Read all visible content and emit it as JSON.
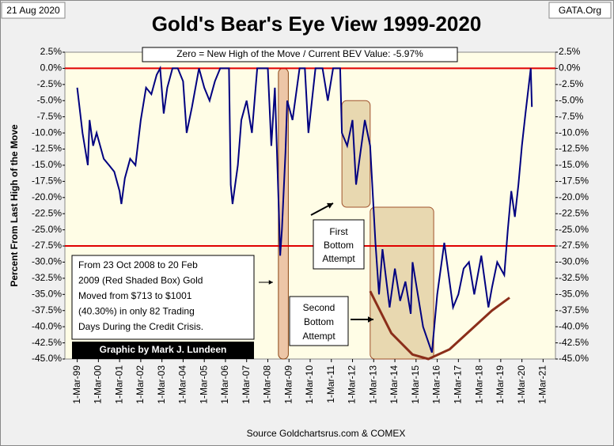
{
  "chart_data": {
    "type": "line",
    "title": "Gold's Bear's Eye View 1999-2020",
    "date_label": "21 Aug 2020",
    "site_label": "GATA.Org",
    "header_note": "Zero = New High of the Move / Current BEV Value:  -5.97%",
    "y_label": "Percent  From Last High of the Move",
    "source": "Source Goldchartsrus.com & COMEX",
    "credit": "Graphic by Mark J. Lundeen",
    "crisis_note": [
      "From 23 Oct 2008 to 20 Feb",
      "2009 (Red Shaded Box)  Gold",
      "Moved from $713 to $1001",
      "(40.30%) in only 82 Trading",
      "Days During the Credit Crisis."
    ],
    "first_bottom": [
      "First",
      "Bottom",
      "Attempt"
    ],
    "second_bottom": [
      "Second",
      "Bottom",
      "Attempt"
    ],
    "series": [
      {
        "name": "BEV",
        "color": "#000080",
        "x": [
          "1999-03-01",
          "1999-06-01",
          "1999-09-01",
          "1999-10-01",
          "1999-12-01",
          "2000-02-01",
          "2000-06-01",
          "2000-09-01",
          "2000-12-01",
          "2001-03-01",
          "2001-04-01",
          "2001-06-01",
          "2001-09-01",
          "2001-12-01",
          "2002-03-01",
          "2002-06-01",
          "2002-09-01",
          "2002-12-01",
          "2003-02-01",
          "2003-04-01",
          "2003-06-01",
          "2003-09-01",
          "2003-12-01",
          "2004-03-01",
          "2004-05-01",
          "2004-08-01",
          "2004-12-01",
          "2005-03-01",
          "2005-06-01",
          "2005-09-01",
          "2005-12-01",
          "2006-05-01",
          "2006-06-01",
          "2006-07-01",
          "2006-10-01",
          "2006-12-01",
          "2007-03-01",
          "2007-06-01",
          "2007-09-01",
          "2007-12-01",
          "2008-03-01",
          "2008-05-01",
          "2008-07-01",
          "2008-09-01",
          "2008-10-01",
          "2008-11-01",
          "2009-01-01",
          "2009-02-01",
          "2009-05-01",
          "2009-09-01",
          "2009-12-01",
          "2010-02-01",
          "2010-06-01",
          "2010-10-01",
          "2011-01-01",
          "2011-04-01",
          "2011-08-01",
          "2011-09-01",
          "2011-12-01",
          "2012-03-01",
          "2012-05-01",
          "2012-09-01",
          "2012-10-01",
          "2013-01-01",
          "2013-04-01",
          "2013-06-01",
          "2013-08-01",
          "2013-12-01",
          "2014-03-01",
          "2014-06-01",
          "2014-09-01",
          "2014-12-01",
          "2015-01-01",
          "2015-07-01",
          "2015-12-01",
          "2016-03-01",
          "2016-07-01",
          "2016-12-01",
          "2017-03-01",
          "2017-06-01",
          "2017-09-01",
          "2017-12-01",
          "2018-04-01",
          "2018-08-01",
          "2018-10-01",
          "2019-01-01",
          "2019-05-01",
          "2019-07-01",
          "2019-09-01",
          "2019-11-01",
          "2020-01-01",
          "2020-03-01",
          "2020-05-01",
          "2020-08-01",
          "2020-08-21"
        ],
        "values": [
          -3,
          -10,
          -15,
          -8,
          -12,
          -10,
          -14,
          -15,
          -16,
          -19,
          -21,
          -17,
          -14,
          -15,
          -8,
          -3,
          -4,
          -1,
          0,
          -7,
          -3,
          0,
          0,
          -2,
          -10,
          -6,
          0,
          -3,
          -5,
          -2,
          0,
          0,
          -18,
          -21,
          -15,
          -8,
          -5,
          -10,
          0,
          0,
          0,
          -12,
          -3,
          -20,
          -29,
          -25,
          -13,
          -5,
          -8,
          0,
          0,
          -10,
          0,
          0,
          -5,
          0,
          0,
          -10,
          -12,
          -8,
          -18,
          -10,
          -8,
          -12,
          -27,
          -35,
          -28,
          -37,
          -31,
          -36,
          -33,
          -38,
          -30,
          -40,
          -44,
          -35,
          -27,
          -37,
          -35,
          -31,
          -30,
          -35,
          -29,
          -37,
          -34,
          -30,
          -32,
          -25,
          -19,
          -23,
          -18,
          -12,
          -7,
          0,
          -5.97
        ]
      }
    ],
    "reference_lines": [
      0,
      -27.5
    ],
    "crisis_box": {
      "x": [
        "2008-09-01",
        "2009-02-20"
      ],
      "y": [
        0,
        -45
      ]
    },
    "bottom_boxes": [
      {
        "x": [
          "2011-09-01",
          "2013-01-01"
        ],
        "y": [
          -5,
          -21.5
        ]
      },
      {
        "x": [
          "2013-01-01",
          "2016-01-01"
        ],
        "y": [
          -21.5,
          -45
        ]
      }
    ],
    "trend_curve": {
      "x": [
        "2013-01-01",
        "2014-01-01",
        "2015-01-01",
        "2015-10-01",
        "2016-10-01",
        "2017-10-01",
        "2018-10-01",
        "2019-08-01"
      ],
      "values": [
        -34.5,
        -41,
        -44.3,
        -45,
        -43.5,
        -40.5,
        -37.5,
        -35.5
      ]
    },
    "xlim": [
      "1998-08-01",
      "2021-10-01"
    ],
    "xticks": [
      {
        "value": "1999-03-01",
        "label": "1-Mar-99"
      },
      {
        "value": "2000-03-01",
        "label": "1-Mar-00"
      },
      {
        "value": "2001-03-01",
        "label": "1-Mar-01"
      },
      {
        "value": "2002-03-01",
        "label": "1-Mar-02"
      },
      {
        "value": "2003-03-01",
        "label": "1-Mar-03"
      },
      {
        "value": "2004-03-01",
        "label": "1-Mar-04"
      },
      {
        "value": "2005-03-01",
        "label": "1-Mar-05"
      },
      {
        "value": "2006-03-01",
        "label": "1-Mar-06"
      },
      {
        "value": "2007-03-01",
        "label": "1-Mar-07"
      },
      {
        "value": "2008-03-01",
        "label": "1-Mar-08"
      },
      {
        "value": "2009-03-01",
        "label": "1-Mar-09"
      },
      {
        "value": "2010-03-01",
        "label": "1-Mar-10"
      },
      {
        "value": "2011-03-01",
        "label": "1-Mar-11"
      },
      {
        "value": "2012-03-01",
        "label": "1-Mar-12"
      },
      {
        "value": "2013-03-01",
        "label": "1-Mar-13"
      },
      {
        "value": "2014-03-01",
        "label": "1-Mar-14"
      },
      {
        "value": "2015-03-01",
        "label": "1-Mar-15"
      },
      {
        "value": "2016-03-01",
        "label": "1-Mar-16"
      },
      {
        "value": "2017-03-01",
        "label": "1-Mar-17"
      },
      {
        "value": "2018-03-01",
        "label": "1-Mar-18"
      },
      {
        "value": "2019-03-01",
        "label": "1-Mar-19"
      },
      {
        "value": "2020-03-01",
        "label": "1-Mar-20"
      },
      {
        "value": "2021-03-01",
        "label": "1-Mar-21"
      }
    ],
    "ylim": [
      -45,
      2.5
    ],
    "yticks": [
      {
        "value": 2.5,
        "label": "2.5%"
      },
      {
        "value": 0,
        "label": "0.0%"
      },
      {
        "value": -2.5,
        "label": "-2.5%"
      },
      {
        "value": -5,
        "label": "-5.0%"
      },
      {
        "value": -7.5,
        "label": "-7.5%"
      },
      {
        "value": -10,
        "label": "-10.0%"
      },
      {
        "value": -12.5,
        "label": "-12.5%"
      },
      {
        "value": -15,
        "label": "-15.0%"
      },
      {
        "value": -17.5,
        "label": "-17.5%"
      },
      {
        "value": -20,
        "label": "-20.0%"
      },
      {
        "value": -22.5,
        "label": "-22.5%"
      },
      {
        "value": -25,
        "label": "-25.0%"
      },
      {
        "value": -27.5,
        "label": "-27.5%"
      },
      {
        "value": -30,
        "label": "-30.0%"
      },
      {
        "value": -32.5,
        "label": "-32.5%"
      },
      {
        "value": -35,
        "label": "-35.0%"
      },
      {
        "value": -37.5,
        "label": "-37.5%"
      },
      {
        "value": -40,
        "label": "-40.0%"
      },
      {
        "value": -42.5,
        "label": "-42.5%"
      },
      {
        "value": -45,
        "label": "-45.0%"
      }
    ],
    "grid": false
  }
}
